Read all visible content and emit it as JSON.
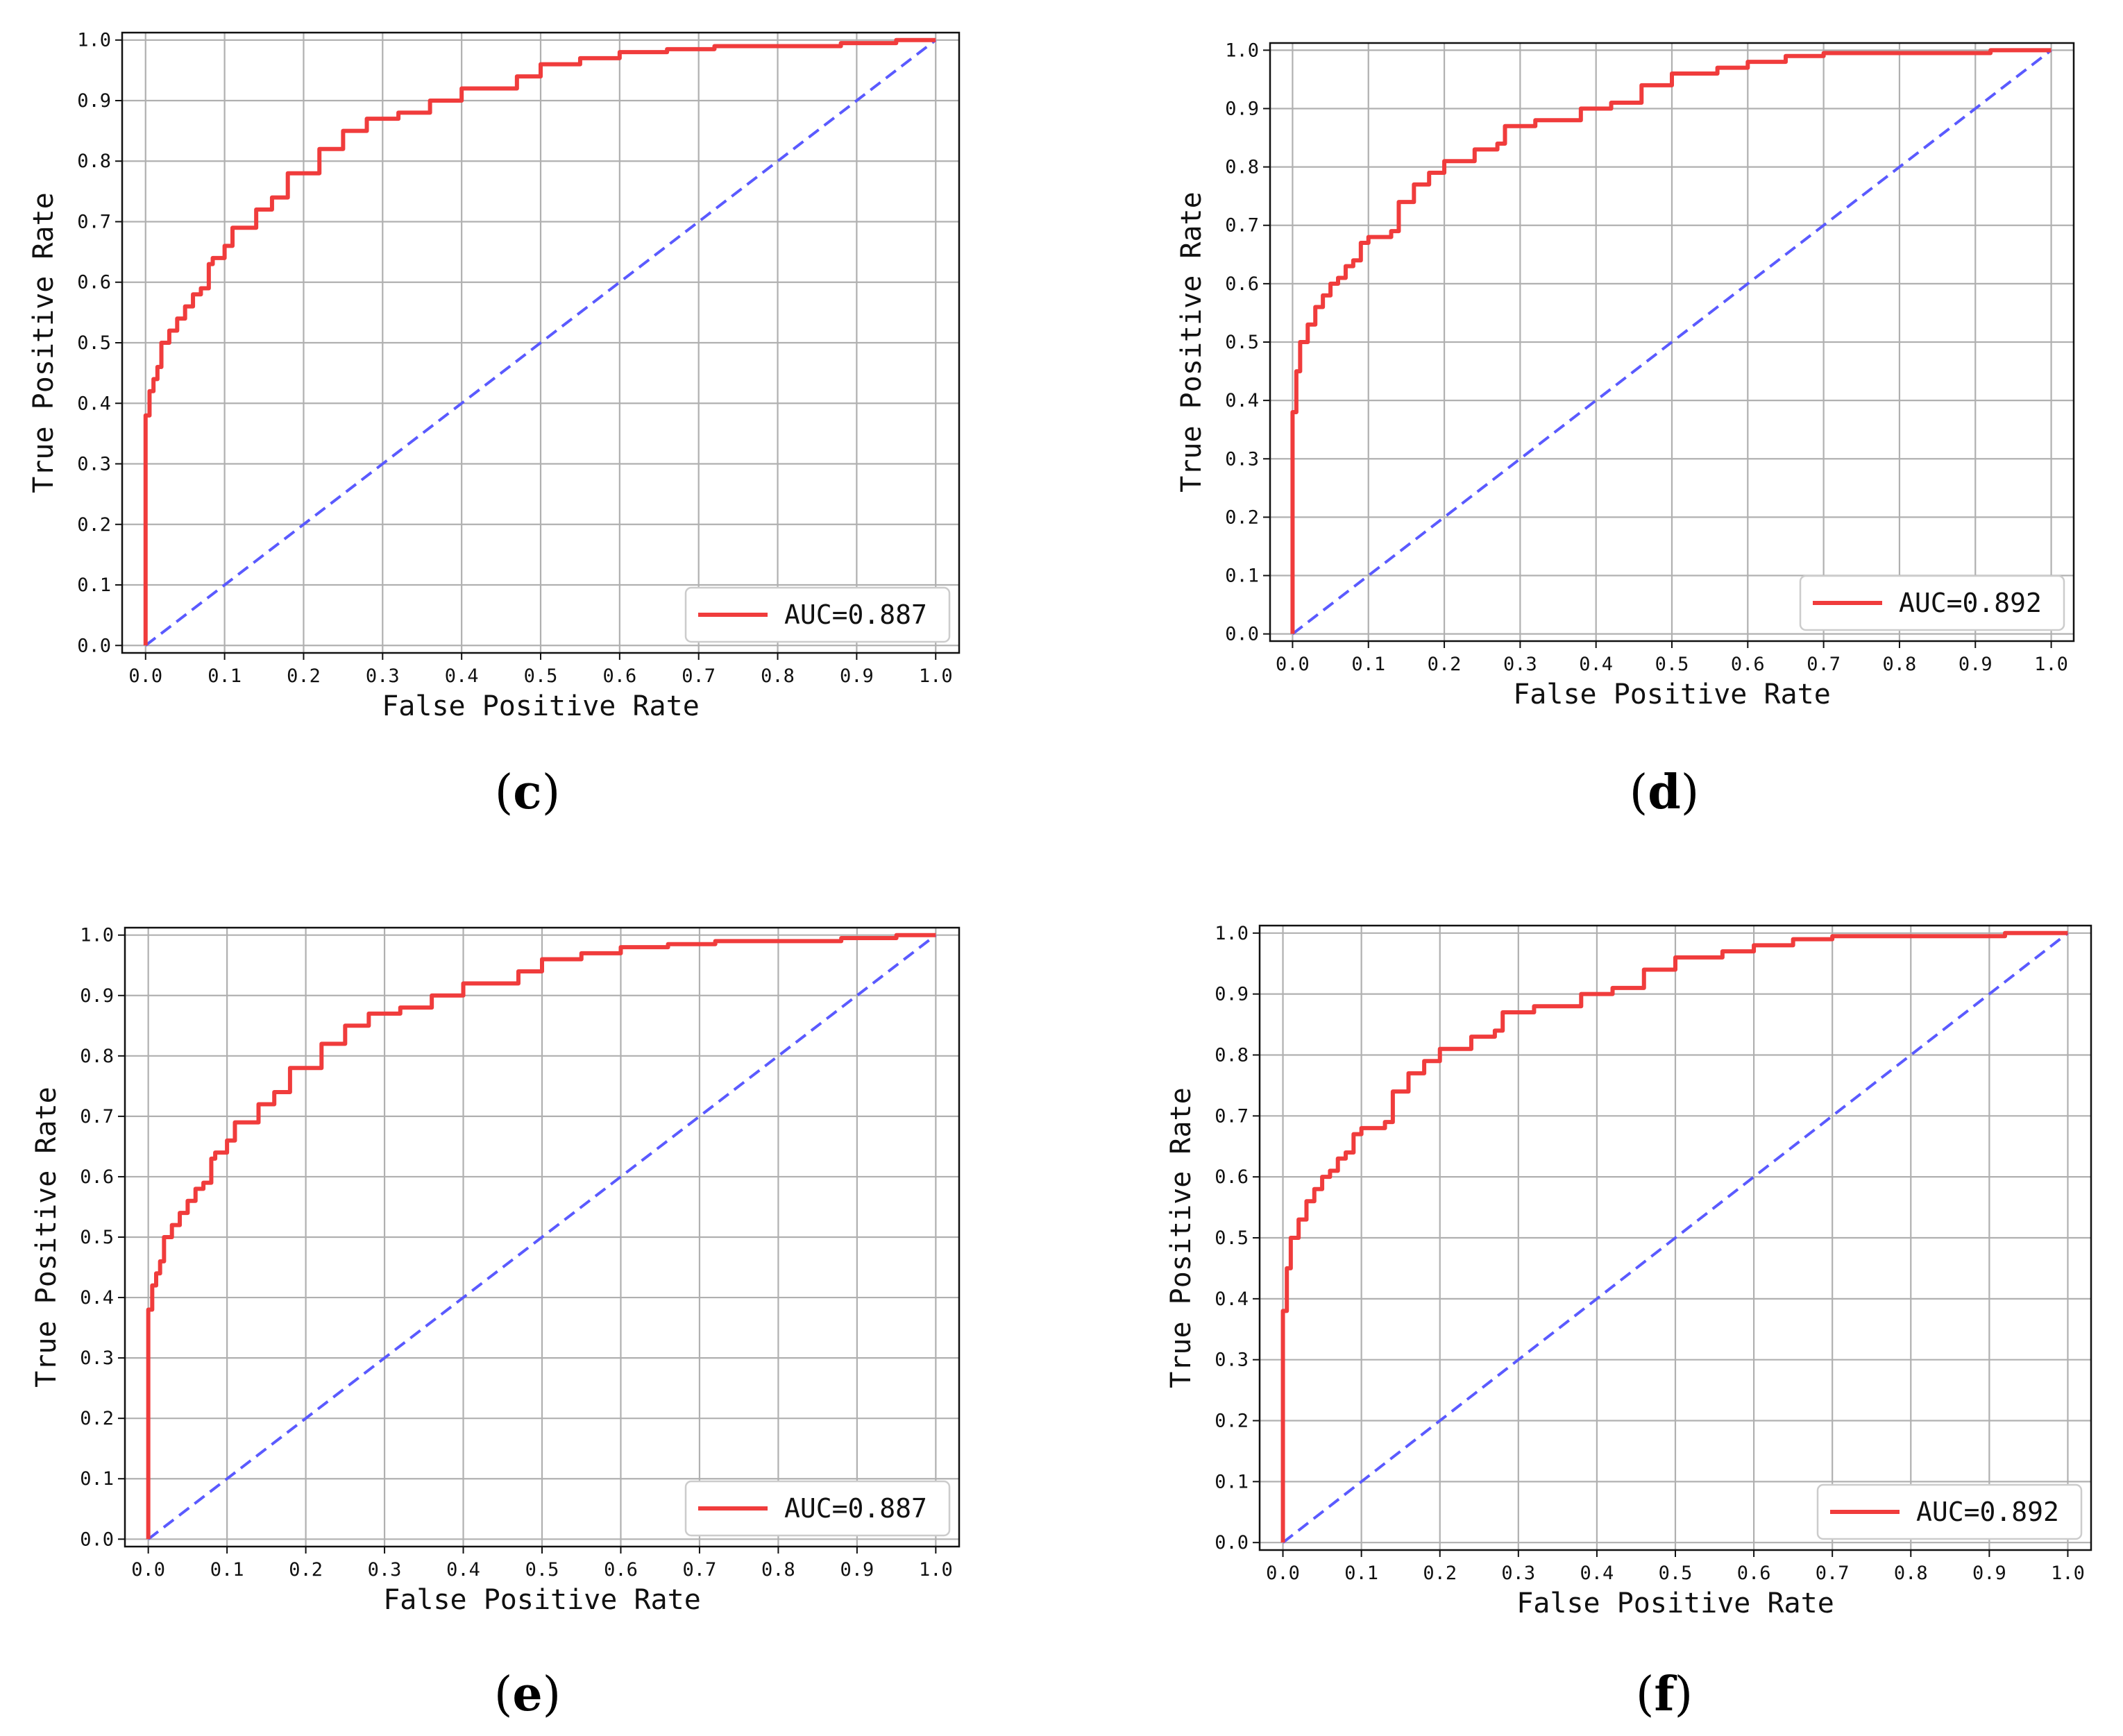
{
  "chart_data": [
    {
      "type": "line",
      "panel_label_letter": "c",
      "xlabel": "False Positive Rate",
      "ylabel": "True Positive Rate",
      "xlim": [
        0.0,
        1.0
      ],
      "ylim": [
        0.0,
        1.0
      ],
      "grid": true,
      "legend_position": "bottom-right",
      "x_ticks": [
        "0.0",
        "0.1",
        "0.2",
        "0.3",
        "0.4",
        "0.5",
        "0.6",
        "0.7",
        "0.8",
        "0.9",
        "1.0"
      ],
      "y_ticks": [
        "0.0",
        "0.1",
        "0.2",
        "0.3",
        "0.4",
        "0.5",
        "0.6",
        "0.7",
        "0.8",
        "0.9",
        "1.0"
      ],
      "series": [
        {
          "name": "AUC=0.887",
          "color": "#f03c3c",
          "style": "solid",
          "x": [
            0.0,
            0.0,
            0.005,
            0.01,
            0.015,
            0.02,
            0.03,
            0.04,
            0.05,
            0.06,
            0.07,
            0.08,
            0.085,
            0.1,
            0.11,
            0.12,
            0.14,
            0.16,
            0.18,
            0.2,
            0.22,
            0.25,
            0.28,
            0.32,
            0.36,
            0.4,
            0.44,
            0.47,
            0.5,
            0.55,
            0.6,
            0.66,
            0.72,
            0.8,
            0.88,
            0.95,
            1.0
          ],
          "y": [
            0.0,
            0.38,
            0.42,
            0.44,
            0.46,
            0.5,
            0.52,
            0.54,
            0.56,
            0.58,
            0.59,
            0.63,
            0.64,
            0.66,
            0.69,
            0.69,
            0.72,
            0.74,
            0.78,
            0.78,
            0.82,
            0.85,
            0.87,
            0.88,
            0.9,
            0.92,
            0.92,
            0.94,
            0.96,
            0.97,
            0.98,
            0.985,
            0.99,
            0.99,
            0.995,
            1.0,
            1.0
          ]
        },
        {
          "name": "",
          "color": "#5a5aff",
          "style": "dashed",
          "x": [
            0.0,
            1.0
          ],
          "y": [
            0.0,
            1.0
          ]
        }
      ]
    },
    {
      "type": "line",
      "panel_label_letter": "d",
      "xlabel": "False Positive Rate",
      "ylabel": "True Positive Rate",
      "xlim": [
        0.0,
        1.0
      ],
      "ylim": [
        0.0,
        1.0
      ],
      "grid": true,
      "legend_position": "bottom-right",
      "x_ticks": [
        "0.0",
        "0.1",
        "0.2",
        "0.3",
        "0.4",
        "0.5",
        "0.6",
        "0.7",
        "0.8",
        "0.9",
        "1.0"
      ],
      "y_ticks": [
        "0.0",
        "0.1",
        "0.2",
        "0.3",
        "0.4",
        "0.5",
        "0.6",
        "0.7",
        "0.8",
        "0.9",
        "1.0"
      ],
      "series": [
        {
          "name": "AUC=0.892",
          "color": "#f03c3c",
          "style": "solid",
          "x": [
            0.0,
            0.0,
            0.005,
            0.01,
            0.02,
            0.03,
            0.04,
            0.05,
            0.06,
            0.07,
            0.08,
            0.09,
            0.1,
            0.13,
            0.14,
            0.16,
            0.18,
            0.2,
            0.24,
            0.27,
            0.28,
            0.32,
            0.38,
            0.42,
            0.46,
            0.5,
            0.56,
            0.6,
            0.65,
            0.7,
            0.8,
            0.91,
            0.92,
            1.0
          ],
          "y": [
            0.0,
            0.38,
            0.45,
            0.5,
            0.53,
            0.56,
            0.58,
            0.6,
            0.61,
            0.63,
            0.64,
            0.67,
            0.68,
            0.69,
            0.74,
            0.77,
            0.79,
            0.81,
            0.83,
            0.84,
            0.87,
            0.88,
            0.9,
            0.91,
            0.94,
            0.96,
            0.97,
            0.98,
            0.99,
            0.995,
            0.995,
            0.995,
            1.0,
            1.0
          ]
        },
        {
          "name": "",
          "color": "#5a5aff",
          "style": "dashed",
          "x": [
            0.0,
            1.0
          ],
          "y": [
            0.0,
            1.0
          ]
        }
      ]
    },
    {
      "type": "line",
      "panel_label_letter": "e",
      "xlabel": "False Positive Rate",
      "ylabel": "True Positive Rate",
      "xlim": [
        0.0,
        1.0
      ],
      "ylim": [
        0.0,
        1.0
      ],
      "grid": true,
      "legend_position": "bottom-right",
      "x_ticks": [
        "0.0",
        "0.1",
        "0.2",
        "0.3",
        "0.4",
        "0.5",
        "0.6",
        "0.7",
        "0.8",
        "0.9",
        "1.0"
      ],
      "y_ticks": [
        "0.0",
        "0.1",
        "0.2",
        "0.3",
        "0.4",
        "0.5",
        "0.6",
        "0.7",
        "0.8",
        "0.9",
        "1.0"
      ],
      "series": [
        {
          "name": "AUC=0.887",
          "color": "#f03c3c",
          "style": "solid",
          "x": [
            0.0,
            0.0,
            0.005,
            0.01,
            0.015,
            0.02,
            0.03,
            0.04,
            0.05,
            0.06,
            0.07,
            0.08,
            0.085,
            0.1,
            0.11,
            0.12,
            0.14,
            0.16,
            0.18,
            0.2,
            0.22,
            0.25,
            0.28,
            0.32,
            0.36,
            0.4,
            0.44,
            0.47,
            0.5,
            0.55,
            0.6,
            0.66,
            0.72,
            0.8,
            0.88,
            0.95,
            1.0
          ],
          "y": [
            0.0,
            0.38,
            0.42,
            0.44,
            0.46,
            0.5,
            0.52,
            0.54,
            0.56,
            0.58,
            0.59,
            0.63,
            0.64,
            0.66,
            0.69,
            0.69,
            0.72,
            0.74,
            0.78,
            0.78,
            0.82,
            0.85,
            0.87,
            0.88,
            0.9,
            0.92,
            0.92,
            0.94,
            0.96,
            0.97,
            0.98,
            0.985,
            0.99,
            0.99,
            0.995,
            1.0,
            1.0
          ]
        },
        {
          "name": "",
          "color": "#5a5aff",
          "style": "dashed",
          "x": [
            0.0,
            1.0
          ],
          "y": [
            0.0,
            1.0
          ]
        }
      ]
    },
    {
      "type": "line",
      "panel_label_letter": "f",
      "xlabel": "False Positive Rate",
      "ylabel": "True Positive Rate",
      "xlim": [
        0.0,
        1.0
      ],
      "ylim": [
        0.0,
        1.0
      ],
      "grid": true,
      "legend_position": "bottom-right",
      "x_ticks": [
        "0.0",
        "0.1",
        "0.2",
        "0.3",
        "0.4",
        "0.5",
        "0.6",
        "0.7",
        "0.8",
        "0.9",
        "1.0"
      ],
      "y_ticks": [
        "0.0",
        "0.1",
        "0.2",
        "0.3",
        "0.4",
        "0.5",
        "0.6",
        "0.7",
        "0.8",
        "0.9",
        "1.0"
      ],
      "series": [
        {
          "name": "AUC=0.892",
          "color": "#f03c3c",
          "style": "solid",
          "x": [
            0.0,
            0.0,
            0.005,
            0.01,
            0.02,
            0.03,
            0.04,
            0.05,
            0.06,
            0.07,
            0.08,
            0.09,
            0.1,
            0.13,
            0.14,
            0.16,
            0.18,
            0.2,
            0.24,
            0.27,
            0.28,
            0.32,
            0.38,
            0.42,
            0.46,
            0.5,
            0.56,
            0.6,
            0.65,
            0.7,
            0.8,
            0.91,
            0.92,
            1.0
          ],
          "y": [
            0.0,
            0.38,
            0.45,
            0.5,
            0.53,
            0.56,
            0.58,
            0.6,
            0.61,
            0.63,
            0.64,
            0.67,
            0.68,
            0.69,
            0.74,
            0.77,
            0.79,
            0.81,
            0.83,
            0.84,
            0.87,
            0.88,
            0.9,
            0.91,
            0.94,
            0.96,
            0.97,
            0.98,
            0.99,
            0.995,
            0.995,
            0.995,
            1.0,
            1.0
          ]
        },
        {
          "name": "",
          "color": "#5a5aff",
          "style": "dashed",
          "x": [
            0.0,
            1.0
          ],
          "y": [
            0.0,
            1.0
          ]
        }
      ]
    }
  ]
}
